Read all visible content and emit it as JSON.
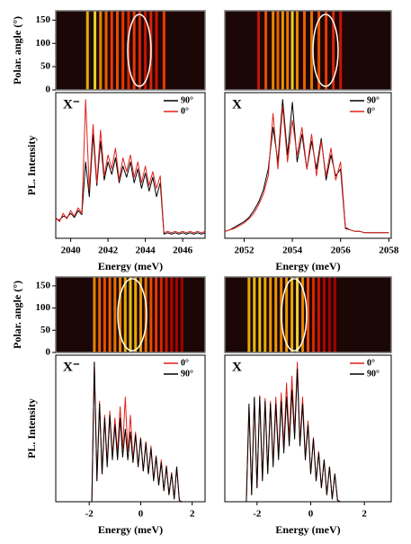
{
  "chart_data": [
    {
      "type": "spectrum-map",
      "label": "X⁻",
      "xlabel": "Energy (meV)",
      "xlim": [
        2039.2,
        2047.2
      ],
      "xticks": [
        2040,
        2042,
        2044,
        2046
      ],
      "heatmap": {
        "ylabel": "Polar. angle (°)",
        "ylim": [
          0,
          170
        ],
        "yticks": [
          0,
          50,
          100,
          150
        ],
        "x": [
          2040.9,
          2041.3,
          2041.6,
          2041.9,
          2042.2,
          2042.5,
          2042.8,
          2043.1,
          2043.4,
          2043.7,
          2044.0,
          2044.3,
          2044.6,
          2045.0
        ],
        "values": [
          0.8,
          0.9,
          0.7,
          0.6,
          0.5,
          0.55,
          0.5,
          0.45,
          0.5,
          0.45,
          0.4,
          0.45,
          0.4,
          0.5
        ]
      },
      "spectrum": {
        "ylabel": "PL. Intensity",
        "ylim": [
          0,
          1.05
        ],
        "x": [
          2039.2,
          2039.4,
          2039.6,
          2039.8,
          2040.0,
          2040.2,
          2040.4,
          2040.6,
          2040.8,
          2041.0,
          2041.2,
          2041.4,
          2041.6,
          2041.8,
          2042.0,
          2042.2,
          2042.4,
          2042.6,
          2042.8,
          2043.0,
          2043.2,
          2043.4,
          2043.6,
          2043.8,
          2044.0,
          2044.2,
          2044.4,
          2044.6,
          2044.8,
          2045.0,
          2045.2,
          2045.4,
          2045.6,
          2045.8,
          2046.0,
          2046.2,
          2046.4,
          2046.6,
          2046.8,
          2047.0,
          2047.2
        ],
        "series": [
          {
            "name": "90°",
            "color": "#000000",
            "values": [
              0.14,
              0.13,
              0.16,
              0.15,
              0.18,
              0.15,
              0.2,
              0.17,
              0.55,
              0.3,
              0.75,
              0.38,
              0.7,
              0.42,
              0.55,
              0.46,
              0.58,
              0.4,
              0.52,
              0.44,
              0.55,
              0.4,
              0.5,
              0.36,
              0.47,
              0.34,
              0.44,
              0.3,
              0.4,
              0.03,
              0.04,
              0.03,
              0.04,
              0.03,
              0.04,
              0.03,
              0.04,
              0.03,
              0.04,
              0.03,
              0.04
            ]
          },
          {
            "name": "0°",
            "color": "#e0201a",
            "values": [
              0.15,
              0.12,
              0.18,
              0.14,
              0.2,
              0.16,
              0.22,
              0.18,
              1.0,
              0.35,
              0.82,
              0.4,
              0.78,
              0.45,
              0.6,
              0.5,
              0.65,
              0.42,
              0.58,
              0.48,
              0.6,
              0.44,
              0.55,
              0.4,
              0.52,
              0.38,
              0.48,
              0.36,
              0.45,
              0.04,
              0.05,
              0.04,
              0.05,
              0.04,
              0.05,
              0.04,
              0.05,
              0.04,
              0.05,
              0.04,
              0.05
            ]
          }
        ]
      }
    },
    {
      "type": "spectrum-map",
      "label": "X",
      "xlabel": "Energy (meV)",
      "xlim": [
        2051.2,
        2058.1
      ],
      "xticks": [
        2052,
        2054,
        2056,
        2058
      ],
      "heatmap": {
        "ylim": [
          0,
          170
        ],
        "x": [
          2052.6,
          2052.9,
          2053.2,
          2053.4,
          2053.6,
          2053.8,
          2054.0,
          2054.2,
          2054.5,
          2054.8,
          2055.1,
          2055.4,
          2055.7,
          2056.0
        ],
        "values": [
          0.4,
          0.55,
          0.7,
          0.6,
          0.75,
          0.65,
          0.9,
          0.7,
          0.6,
          0.65,
          0.55,
          0.5,
          0.45,
          0.4
        ]
      },
      "spectrum": {
        "ylim": [
          0,
          1.05
        ],
        "x": [
          2051.2,
          2051.4,
          2051.6,
          2051.8,
          2052.0,
          2052.2,
          2052.4,
          2052.6,
          2052.8,
          2053.0,
          2053.2,
          2053.4,
          2053.6,
          2053.8,
          2054.0,
          2054.2,
          2054.4,
          2054.6,
          2054.8,
          2055.0,
          2055.2,
          2055.4,
          2055.6,
          2055.8,
          2056.0,
          2056.2,
          2056.4,
          2056.6,
          2056.8,
          2057.0,
          2057.2,
          2057.4,
          2057.6,
          2057.8,
          2058.0
        ],
        "series": [
          {
            "name": "90°",
            "color": "#000000",
            "values": [
              0.05,
              0.06,
              0.08,
              0.1,
              0.12,
              0.15,
              0.2,
              0.26,
              0.35,
              0.5,
              0.8,
              0.55,
              1.0,
              0.6,
              0.98,
              0.55,
              0.75,
              0.5,
              0.7,
              0.5,
              0.72,
              0.42,
              0.6,
              0.45,
              0.5,
              0.07,
              0.06,
              0.05,
              0.05,
              0.04,
              0.04,
              0.04,
              0.04,
              0.04,
              0.04
            ]
          },
          {
            "name": "0°",
            "color": "#e0201a",
            "values": [
              0.05,
              0.06,
              0.07,
              0.09,
              0.11,
              0.14,
              0.18,
              0.24,
              0.32,
              0.45,
              0.9,
              0.5,
              0.95,
              0.55,
              0.85,
              0.6,
              0.8,
              0.5,
              0.75,
              0.45,
              0.7,
              0.45,
              0.65,
              0.42,
              0.55,
              0.08,
              0.06,
              0.05,
              0.05,
              0.04,
              0.04,
              0.04,
              0.04,
              0.04,
              0.04
            ]
          }
        ]
      }
    },
    {
      "type": "spectrum-map",
      "label": "X⁻",
      "xlabel": "Energy (meV)",
      "xlim": [
        -3.3,
        2.5
      ],
      "xticks": [
        -2,
        0,
        2
      ],
      "heatmap": {
        "ylabel": "Polar. angle (°)",
        "ylim": [
          0,
          170
        ],
        "yticks": [
          0,
          50,
          100,
          150
        ],
        "x": [
          -1.8,
          -1.6,
          -1.4,
          -1.2,
          -1.0,
          -0.8,
          -0.6,
          -0.4,
          -0.2,
          0,
          0.2,
          0.4,
          0.6,
          0.8,
          1.0,
          1.2,
          1.4,
          1.6
        ],
        "values": [
          0.7,
          0.6,
          0.55,
          0.6,
          0.65,
          0.7,
          0.8,
          0.85,
          0.8,
          0.75,
          0.65,
          0.55,
          0.5,
          0.45,
          0.4,
          0.35,
          0.3,
          0.3
        ]
      },
      "spectrum": {
        "ylabel": "PL. Intensity",
        "ylim": [
          0,
          1.05
        ],
        "x": [
          -3.3,
          -3.2,
          -3.1,
          -3,
          -2.9,
          -2.8,
          -2.7,
          -2.6,
          -2.5,
          -2.4,
          -2.3,
          -2.2,
          -2.1,
          -2,
          -1.9,
          -1.8,
          -1.7,
          -1.6,
          -1.5,
          -1.4,
          -1.3,
          -1.2,
          -1.1,
          -1,
          -0.9,
          -0.8,
          -0.7,
          -0.6,
          -0.5,
          -0.4,
          -0.3,
          -0.2,
          -0.1,
          0,
          0.1,
          0.2,
          0.3,
          0.4,
          0.5,
          0.6,
          0.7,
          0.8,
          0.9,
          1,
          1.1,
          1.2,
          1.3,
          1.4,
          1.5,
          1.6,
          1.7,
          1.8,
          1.9,
          2,
          2.1,
          2.2,
          2.3,
          2.4,
          2.5
        ],
        "series": [
          {
            "name": "0°",
            "color": "#e0201a",
            "values": [
              0,
              0,
              0,
              0,
              0,
              0,
              0,
              0,
              0,
              0,
              0,
              0,
              0,
              0,
              0,
              1.0,
              0.15,
              0.72,
              0.2,
              0.62,
              0.28,
              0.65,
              0.32,
              0.6,
              0.35,
              0.68,
              0.38,
              0.75,
              0.36,
              0.62,
              0.3,
              0.5,
              0.26,
              0.46,
              0.22,
              0.43,
              0.2,
              0.4,
              0.16,
              0.33,
              0.12,
              0.3,
              0.08,
              0.26,
              0.05,
              0.21,
              0.02,
              0.25,
              0.01,
              0,
              0,
              0,
              0,
              0,
              0,
              0,
              0,
              0,
              0
            ]
          },
          {
            "name": "90°",
            "color": "#000000",
            "values": [
              0,
              0,
              0,
              0,
              0,
              0,
              0,
              0,
              0,
              0,
              0,
              0,
              0,
              0,
              0,
              1.0,
              0.15,
              0.7,
              0.2,
              0.6,
              0.25,
              0.62,
              0.3,
              0.55,
              0.3,
              0.6,
              0.32,
              0.52,
              0.3,
              0.5,
              0.28,
              0.48,
              0.25,
              0.45,
              0.22,
              0.42,
              0.2,
              0.38,
              0.15,
              0.32,
              0.12,
              0.28,
              0.08,
              0.25,
              0.05,
              0.2,
              0.02,
              0.25,
              0.01,
              0,
              0,
              0,
              0,
              0,
              0,
              0,
              0,
              0,
              0
            ]
          }
        ]
      }
    },
    {
      "type": "spectrum-map",
      "label": "X",
      "xlabel": "Energy (meV)",
      "xlim": [
        -3.2,
        3.0
      ],
      "xticks": [
        -2,
        0,
        2
      ],
      "heatmap": {
        "ylim": [
          0,
          170
        ],
        "x": [
          -2.3,
          -2.1,
          -1.9,
          -1.7,
          -1.5,
          -1.3,
          -1.1,
          -0.9,
          -0.7,
          -0.5,
          -0.3,
          -0.1,
          0.1,
          0.3,
          0.5,
          0.7,
          0.9
        ],
        "values": [
          0.8,
          0.85,
          0.85,
          0.8,
          0.75,
          0.75,
          0.7,
          0.75,
          0.8,
          0.95,
          0.7,
          0.55,
          0.45,
          0.4,
          0.35,
          0.3,
          0.3
        ]
      },
      "spectrum": {
        "ylim": [
          0,
          1.05
        ],
        "x": [
          -3.2,
          -3.1,
          -3,
          -2.9,
          -2.8,
          -2.7,
          -2.6,
          -2.5,
          -2.4,
          -2.3,
          -2.2,
          -2.1,
          -2,
          -1.9,
          -1.8,
          -1.7,
          -1.6,
          -1.5,
          -1.4,
          -1.3,
          -1.2,
          -1.1,
          -1,
          -0.9,
          -0.8,
          -0.7,
          -0.6,
          -0.5,
          -0.4,
          -0.3,
          -0.2,
          -0.1,
          0,
          0.1,
          0.2,
          0.3,
          0.4,
          0.5,
          0.6,
          0.7,
          0.8,
          0.9,
          1,
          1.1,
          1.2,
          1.3,
          1.4,
          1.5,
          1.6,
          1.7,
          1.8,
          1.9,
          2,
          2.1,
          2.2,
          2.3,
          2.4,
          2.5,
          2.6,
          2.7,
          2.8,
          2.9,
          3
        ],
        "series": [
          {
            "name": "0°",
            "color": "#e0201a",
            "values": [
              0,
              0,
              0,
              0,
              0,
              0,
              0,
              0,
              0,
              0.68,
              0.05,
              0.74,
              0.1,
              0.76,
              0.16,
              0.74,
              0.22,
              0.72,
              0.28,
              0.75,
              0.33,
              0.78,
              0.4,
              0.85,
              0.45,
              0.9,
              0.5,
              1.0,
              0.42,
              0.75,
              0.32,
              0.58,
              0.2,
              0.46,
              0.15,
              0.36,
              0.1,
              0.3,
              0.05,
              0.25,
              0.02,
              0.2,
              0.01,
              0,
              0,
              0,
              0,
              0,
              0,
              0,
              0,
              0,
              0,
              0,
              0,
              0,
              0,
              0,
              0,
              0,
              0,
              0,
              0
            ]
          },
          {
            "name": "90°",
            "color": "#000000",
            "values": [
              0,
              0,
              0,
              0,
              0,
              0,
              0,
              0,
              0,
              0.7,
              0.05,
              0.75,
              0.1,
              0.75,
              0.15,
              0.72,
              0.2,
              0.7,
              0.25,
              0.7,
              0.3,
              0.72,
              0.35,
              0.75,
              0.4,
              0.8,
              0.45,
              0.95,
              0.4,
              0.7,
              0.3,
              0.55,
              0.2,
              0.45,
              0.15,
              0.35,
              0.1,
              0.3,
              0.05,
              0.25,
              0.02,
              0.2,
              0.01,
              0,
              0,
              0,
              0,
              0,
              0,
              0,
              0,
              0,
              0,
              0,
              0,
              0,
              0,
              0,
              0,
              0,
              0,
              0,
              0
            ]
          }
        ]
      }
    }
  ]
}
